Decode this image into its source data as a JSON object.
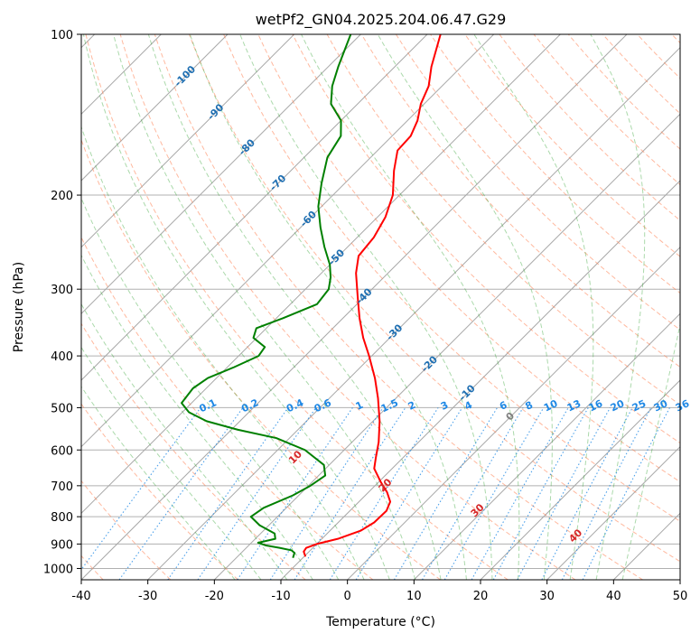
{
  "chart_data": {
    "type": "line",
    "subtype": "skew-t log-p diagram",
    "title": "wetPf2_GN04.2025.204.06.47.G29",
    "xlabel": "Temperature (°C)",
    "ylabel": "Pressure (hPa)",
    "xlim": [
      -40,
      50
    ],
    "ylim": [
      1050,
      100
    ],
    "y_scale": "log",
    "x_ticks": [
      -40,
      -30,
      -20,
      -10,
      0,
      10,
      20,
      30,
      40,
      50
    ],
    "y_ticks": [
      100,
      200,
      300,
      400,
      500,
      600,
      700,
      800,
      900,
      1000
    ],
    "grid": true,
    "colors": {
      "temperature": "#ff0000",
      "dewpoint": "#008000",
      "isotherms": "#9e9e9e",
      "dry_adiabats": "#ff7f50",
      "moist_adiabats": "#2ca02c",
      "mixing_ratio": "#1e88e5",
      "isotherm_labels": "#1f6fb2",
      "adiabat_labels": "#d62728"
    },
    "series": [
      {
        "role": "temperature",
        "points": [
          {
            "p": 950,
            "t": -9.8
          },
          {
            "p": 930,
            "t": -10.8
          },
          {
            "p": 915,
            "t": -11.0
          },
          {
            "p": 900,
            "t": -10.0
          },
          {
            "p": 880,
            "t": -7.6
          },
          {
            "p": 850,
            "t": -5.4
          },
          {
            "p": 820,
            "t": -4.6
          },
          {
            "p": 780,
            "t": -4.5
          },
          {
            "p": 750,
            "t": -5.3
          },
          {
            "p": 720,
            "t": -7.2
          },
          {
            "p": 690,
            "t": -9.6
          },
          {
            "p": 650,
            "t": -12.7
          },
          {
            "p": 620,
            "t": -14.1
          },
          {
            "p": 580,
            "t": -16.0
          },
          {
            "p": 530,
            "t": -19.0
          },
          {
            "p": 480,
            "t": -22.7
          },
          {
            "p": 440,
            "t": -26.2
          },
          {
            "p": 400,
            "t": -30.4
          },
          {
            "p": 370,
            "t": -34.0
          },
          {
            "p": 340,
            "t": -37.5
          },
          {
            "p": 310,
            "t": -41.0
          },
          {
            "p": 280,
            "t": -44.8
          },
          {
            "p": 260,
            "t": -47.0
          },
          {
            "p": 240,
            "t": -47.5
          },
          {
            "p": 220,
            "t": -48.8
          },
          {
            "p": 200,
            "t": -51.0
          },
          {
            "p": 180,
            "t": -54.5
          },
          {
            "p": 165,
            "t": -57.0
          },
          {
            "p": 155,
            "t": -57.2
          },
          {
            "p": 145,
            "t": -58.5
          },
          {
            "p": 135,
            "t": -60.5
          },
          {
            "p": 125,
            "t": -62.0
          },
          {
            "p": 115,
            "t": -64.5
          },
          {
            "p": 100,
            "t": -68.0
          }
        ]
      },
      {
        "role": "dewpoint",
        "points": [
          {
            "p": 955,
            "t": -11.5
          },
          {
            "p": 935,
            "t": -12.0
          },
          {
            "p": 925,
            "t": -12.8
          },
          {
            "p": 915,
            "t": -15.0
          },
          {
            "p": 905,
            "t": -17.5
          },
          {
            "p": 895,
            "t": -19.0
          },
          {
            "p": 880,
            "t": -17.0
          },
          {
            "p": 860,
            "t": -17.9
          },
          {
            "p": 830,
            "t": -21.4
          },
          {
            "p": 800,
            "t": -24.0
          },
          {
            "p": 770,
            "t": -23.4
          },
          {
            "p": 730,
            "t": -20.9
          },
          {
            "p": 700,
            "t": -19.7
          },
          {
            "p": 670,
            "t": -19.0
          },
          {
            "p": 640,
            "t": -20.8
          },
          {
            "p": 600,
            "t": -25.9
          },
          {
            "p": 570,
            "t": -32.0
          },
          {
            "p": 550,
            "t": -39.0
          },
          {
            "p": 530,
            "t": -45.0
          },
          {
            "p": 510,
            "t": -49.0
          },
          {
            "p": 490,
            "t": -51.5
          },
          {
            "p": 460,
            "t": -52.0
          },
          {
            "p": 440,
            "t": -51.3
          },
          {
            "p": 420,
            "t": -49.0
          },
          {
            "p": 400,
            "t": -47.0
          },
          {
            "p": 385,
            "t": -47.4
          },
          {
            "p": 370,
            "t": -50.5
          },
          {
            "p": 355,
            "t": -51.5
          },
          {
            "p": 340,
            "t": -49.0
          },
          {
            "p": 320,
            "t": -46.0
          },
          {
            "p": 300,
            "t": -46.5
          },
          {
            "p": 285,
            "t": -48.0
          },
          {
            "p": 270,
            "t": -50.0
          },
          {
            "p": 250,
            "t": -53.5
          },
          {
            "p": 230,
            "t": -57.0
          },
          {
            "p": 210,
            "t": -60.5
          },
          {
            "p": 190,
            "t": -63.5
          },
          {
            "p": 170,
            "t": -66.5
          },
          {
            "p": 155,
            "t": -67.7
          },
          {
            "p": 145,
            "t": -70.0
          },
          {
            "p": 135,
            "t": -74.0
          },
          {
            "p": 125,
            "t": -76.5
          },
          {
            "p": 115,
            "t": -78.5
          },
          {
            "p": 100,
            "t": -81.5
          }
        ]
      }
    ],
    "isotherm_labels": [
      {
        "text": "-100",
        "t": -100,
        "p": 120
      },
      {
        "text": "-90",
        "t": -90,
        "p": 140
      },
      {
        "text": "-80",
        "t": -80,
        "p": 163
      },
      {
        "text": "-70",
        "t": -70,
        "p": 190
      },
      {
        "text": "-60",
        "t": -60,
        "p": 222
      },
      {
        "text": "-50",
        "t": -50,
        "p": 262
      },
      {
        "text": "-40",
        "t": -40,
        "p": 310
      },
      {
        "text": "-30",
        "t": -30,
        "p": 362
      },
      {
        "text": "-20",
        "t": -20,
        "p": 415
      },
      {
        "text": "-10",
        "t": -10,
        "p": 470
      },
      {
        "text": "0",
        "t": 0,
        "p": 520
      }
    ],
    "dry_adiabat_labels": [
      {
        "text": "10",
        "theta_c": 10,
        "p": 620
      },
      {
        "text": "20",
        "theta_c": 20,
        "p": 700
      },
      {
        "text": "30",
        "theta_c": 30,
        "p": 780
      },
      {
        "text": "40",
        "theta_c": 40,
        "p": 870
      }
    ],
    "mixing_ratio_labels": [
      "0.1",
      "0.2",
      "0.4",
      "0.6",
      "1",
      "1.5",
      "2",
      "3",
      "4",
      "6",
      "8",
      "10",
      "13",
      "16",
      "20",
      "25",
      "30",
      "36"
    ]
  }
}
